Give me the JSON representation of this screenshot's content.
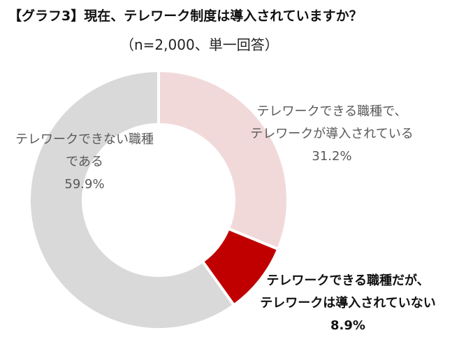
{
  "title": "【グラフ3】現在、テレワーク制度は導入されていますか？",
  "subtitle": "（n=2,000、単一回答）",
  "chart_data": {
    "type": "pie",
    "variant": "donut",
    "title": "【グラフ3】現在、テレワーク制度は導入されていますか？",
    "subtitle": "（n=2,000、単一回答）",
    "legend": "none",
    "slices": [
      {
        "label_lines": [
          "テレワークできる職種で、",
          "テレワークが導入されている"
        ],
        "value": 31.2,
        "value_label": "31.2%",
        "color": "#f1d9da",
        "bold": false
      },
      {
        "label_lines": [
          "テレワークできる職種だが、",
          "テレワークは導入されていない"
        ],
        "value": 8.9,
        "value_label": "8.9%",
        "color": "#c00000",
        "bold": true
      },
      {
        "label_lines": [
          "テレワークできない職種",
          "である"
        ],
        "value": 59.9,
        "value_label": "59.9%",
        "color": "#d9d9d9",
        "bold": false
      }
    ]
  }
}
